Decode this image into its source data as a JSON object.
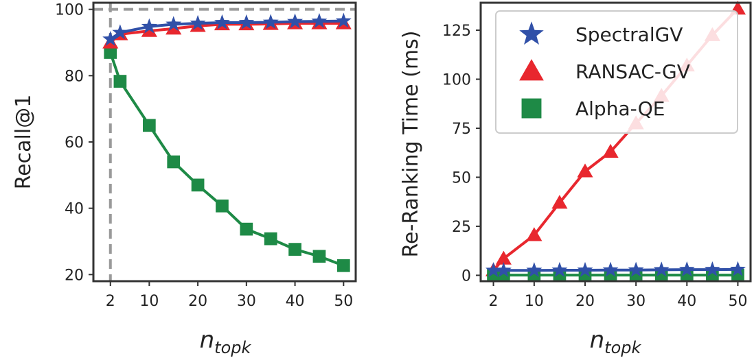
{
  "chart_data": [
    {
      "type": "line",
      "x": [
        2,
        4,
        10,
        15,
        20,
        25,
        30,
        35,
        40,
        45,
        50
      ],
      "xticks": [
        "2",
        "10",
        "20",
        "30",
        "40",
        "50"
      ],
      "yticks": [
        "20",
        "40",
        "60",
        "80",
        "100"
      ],
      "xlabel_main": "n",
      "xlabel_sub": "topk",
      "ylabel": "Recall@1",
      "xlim": [
        -1.5,
        52.5
      ],
      "ylim": [
        18,
        102
      ],
      "reference_lines": {
        "x": 2,
        "y": 100
      },
      "series": [
        {
          "name": "SpectralGV",
          "color": "#3050a8",
          "marker": "star",
          "values": [
            91,
            93,
            94.8,
            95.5,
            95.8,
            96.0,
            96.0,
            96.1,
            96.3,
            96.4,
            96.5
          ]
        },
        {
          "name": "RANSAC-GV",
          "color": "#e8272e",
          "marker": "triangle",
          "values": [
            90,
            92.5,
            93.5,
            94.2,
            95.0,
            95.5,
            95.5,
            95.6,
            95.8,
            95.8,
            95.8
          ]
        },
        {
          "name": "Alpha-QE",
          "color": "#1e8a46",
          "marker": "square",
          "values": [
            87,
            78.3,
            65,
            54,
            47,
            40.7,
            33.7,
            30.8,
            27.6,
            25.5,
            22.7
          ]
        }
      ]
    },
    {
      "type": "line",
      "x": [
        2,
        4,
        10,
        15,
        20,
        25,
        30,
        35,
        40,
        45,
        50
      ],
      "xticks": [
        "2",
        "10",
        "20",
        "30",
        "40",
        "50"
      ],
      "yticks": [
        "0",
        "25",
        "50",
        "75",
        "100",
        "125"
      ],
      "xlabel_main": "n",
      "xlabel_sub": "topk",
      "ylabel": "Re-Ranking Time (ms)",
      "xlim": [
        -0.5,
        52.5
      ],
      "ylim": [
        -3,
        139
      ],
      "legend_position": "top-right",
      "series": [
        {
          "name": "SpectralGV",
          "color": "#3050a8",
          "marker": "star",
          "values": [
            2.5,
            2.5,
            2.5,
            2.6,
            2.6,
            2.7,
            2.7,
            2.8,
            2.9,
            2.9,
            3.0
          ]
        },
        {
          "name": "RANSAC-GV",
          "color": "#e8272e",
          "marker": "triangle",
          "values": [
            2.5,
            8.5,
            20.5,
            37,
            53,
            63,
            77.5,
            91.5,
            107,
            122.5,
            136
          ]
        },
        {
          "name": "Alpha-QE",
          "color": "#1e8a46",
          "marker": "square",
          "values": [
            0.1,
            0.1,
            0.1,
            0.1,
            0.1,
            0.1,
            0.1,
            0.1,
            0.1,
            0.1,
            0.1
          ]
        }
      ]
    }
  ]
}
